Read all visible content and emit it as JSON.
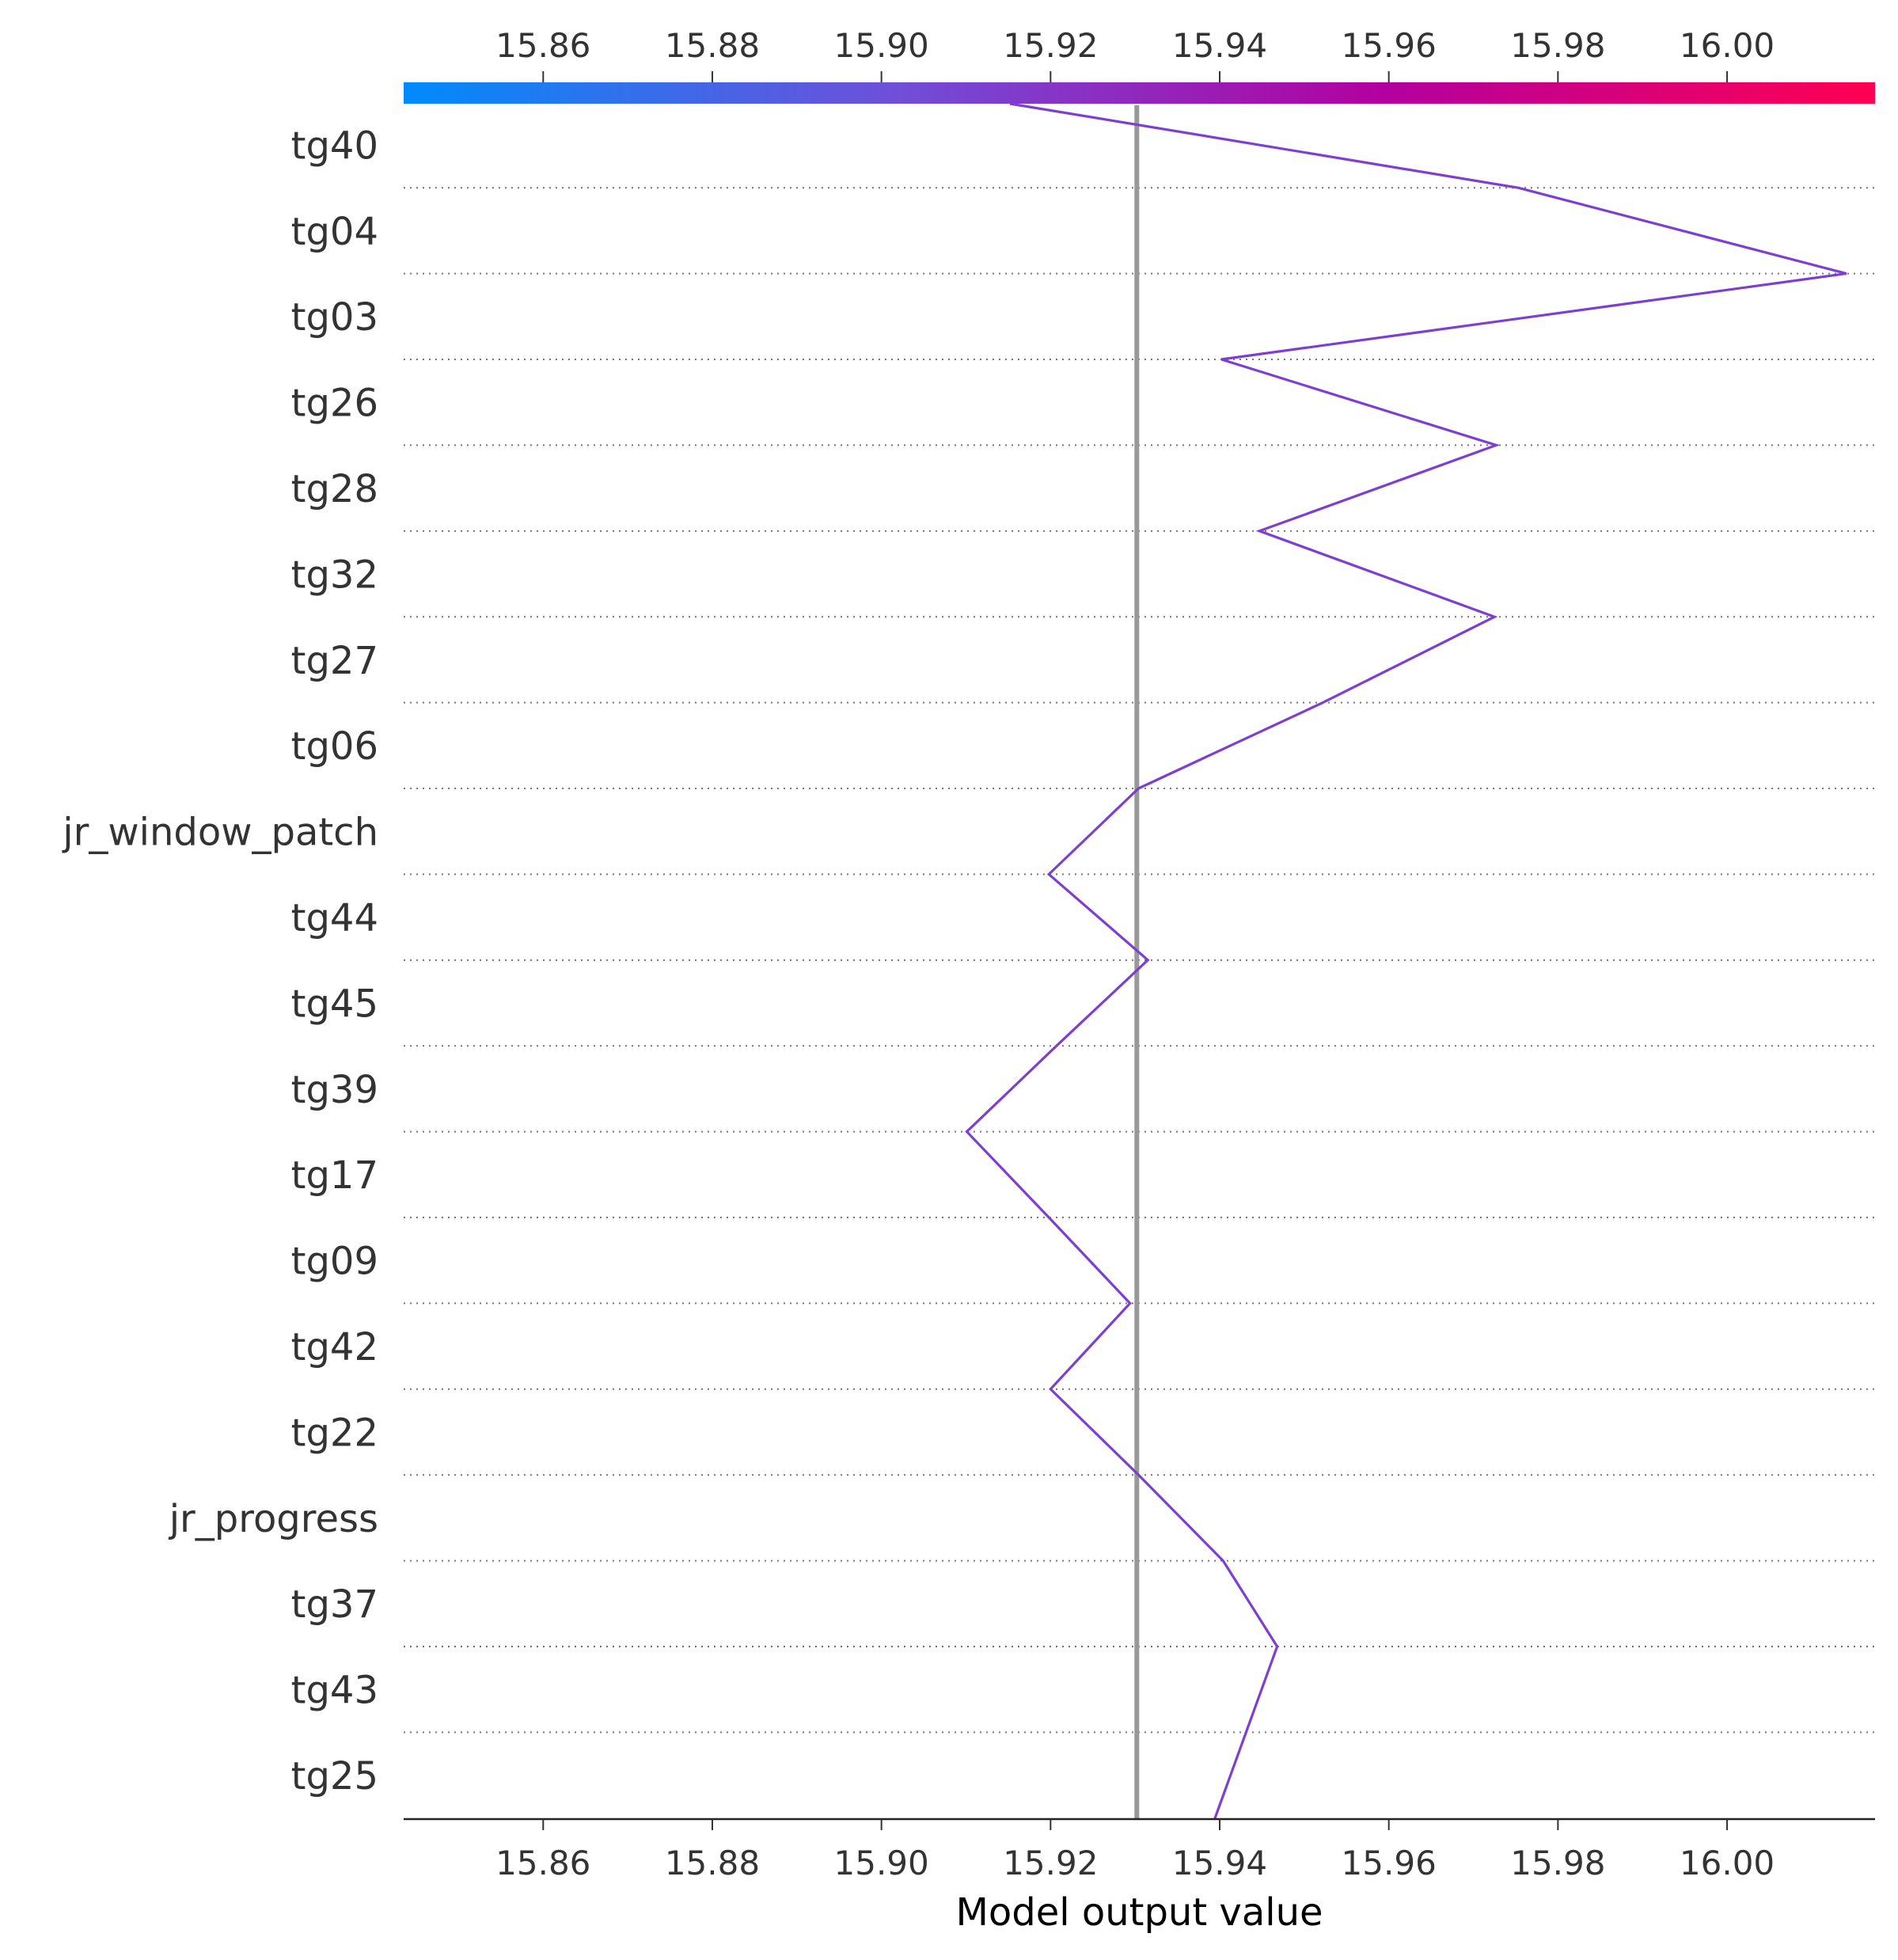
{
  "chart_data": {
    "type": "line",
    "subtype": "shap-decision-plot",
    "xlabel": "Model output value",
    "xlim": [
      15.8435,
      16.0175
    ],
    "x_ticks": [
      "15.86",
      "15.88",
      "15.90",
      "15.92",
      "15.94",
      "15.96",
      "15.98",
      "16.00"
    ],
    "x_tick_values": [
      15.86,
      15.88,
      15.9,
      15.92,
      15.94,
      15.96,
      15.98,
      16.0
    ],
    "base_value": 15.9302,
    "colorbar": {
      "range": [
        15.8435,
        16.0175
      ],
      "colors": [
        "#008bfb",
        "#6f4fd9",
        "#b3009f",
        "#ff0052"
      ]
    },
    "features": [
      "tg40",
      "tg04",
      "tg03",
      "tg26",
      "tg28",
      "tg32",
      "tg27",
      "tg06",
      "jr_window_patch",
      "tg44",
      "tg45",
      "tg39",
      "tg17",
      "tg09",
      "tg42",
      "tg22",
      "jr_progress",
      "tg37",
      "tg43",
      "tg25"
    ],
    "path_values": [
      15.9152,
      15.9753,
      16.0141,
      15.9402,
      15.9727,
      15.9447,
      15.9725,
      15.9522,
      15.9304,
      15.9198,
      15.9315,
      15.9207,
      15.9101,
      15.9198,
      15.9294,
      15.92,
      15.9304,
      15.9404,
      15.9468,
      15.9394
    ],
    "line_color": "#7e3fd0",
    "base_line_color": "#999999",
    "grid": "dotted horizontal"
  }
}
